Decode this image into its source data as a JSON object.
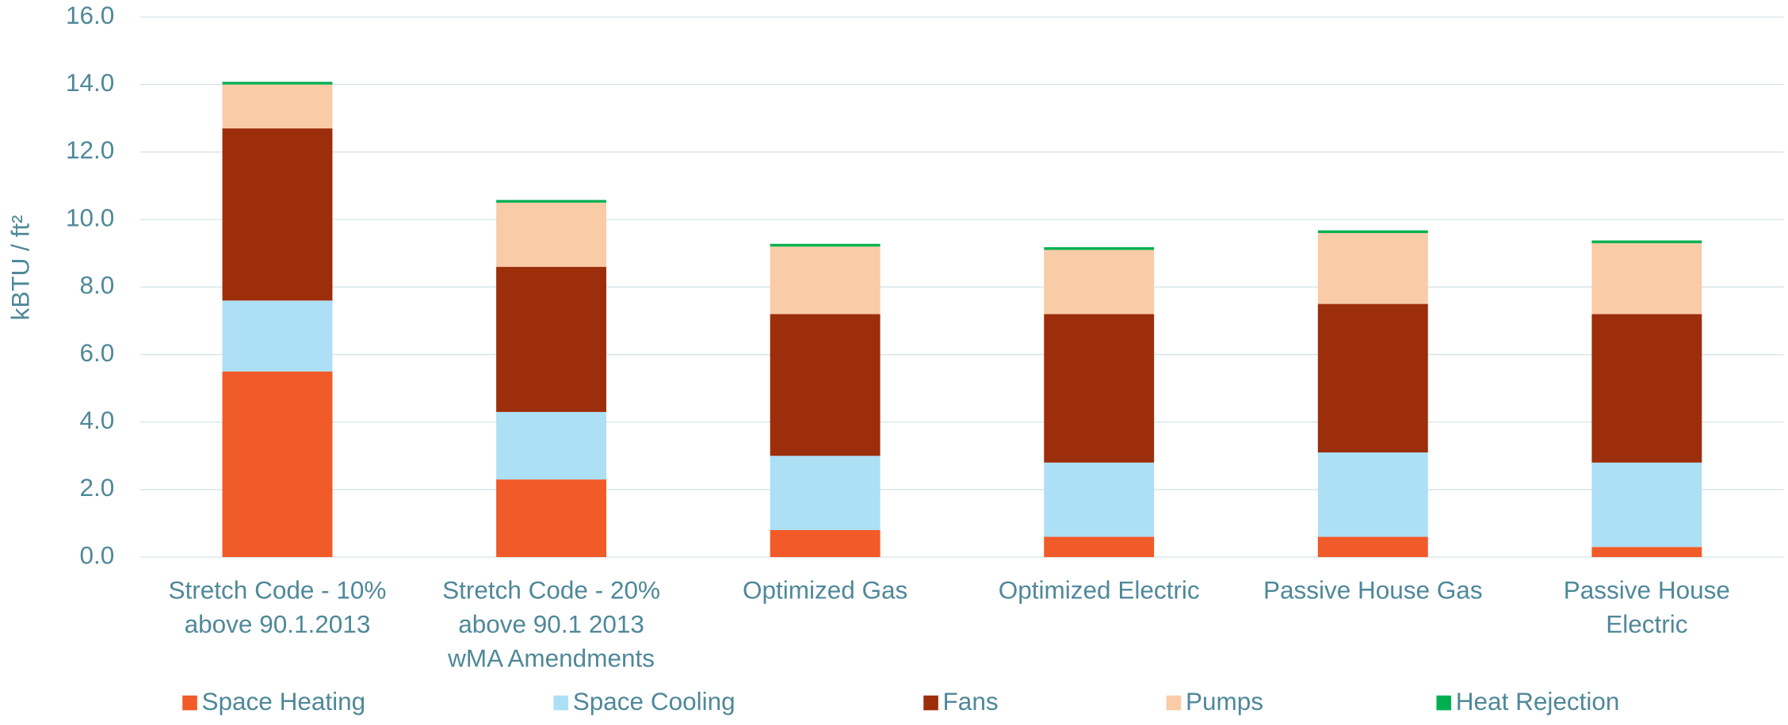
{
  "chart_data": {
    "type": "stacked_bar",
    "y_label": "kBTU / ft²",
    "categories": [
      [
        "Stretch Code - 10%",
        "above 90.1.2013"
      ],
      [
        "Stretch Code - 20%",
        "above 90.1 2013",
        "wMA Amendments"
      ],
      [
        "Optimized Gas"
      ],
      [
        "Optimized Electric"
      ],
      [
        "Passive House Gas"
      ],
      [
        "Passive House",
        "Electric"
      ]
    ],
    "series": [
      {
        "name": "Space Heating",
        "color": "#f15a29",
        "values": [
          5.5,
          2.3,
          0.8,
          0.6,
          0.6,
          0.3
        ]
      },
      {
        "name": "Space Cooling",
        "color": "#addff5",
        "values": [
          2.1,
          2.0,
          2.2,
          2.2,
          2.5,
          2.5
        ]
      },
      {
        "name": "Fans",
        "color": "#9c2e0b",
        "values": [
          5.1,
          4.3,
          4.2,
          4.4,
          4.4,
          4.4
        ]
      },
      {
        "name": "Pumps",
        "color": "#f9cba7",
        "values": [
          1.3,
          1.9,
          2.0,
          1.9,
          2.1,
          2.1
        ]
      },
      {
        "name": "Heat Rejection",
        "color": "#00b050",
        "values": [
          0.08,
          0.08,
          0.08,
          0.08,
          0.08,
          0.08
        ]
      }
    ],
    "ylim": [
      0,
      16
    ],
    "yticks": [
      {
        "value": 0,
        "label": "0.0"
      },
      {
        "value": 2,
        "label": "2.0"
      },
      {
        "value": 4,
        "label": "4.0"
      },
      {
        "value": 6,
        "label": "6.0"
      },
      {
        "value": 8,
        "label": "8.0"
      },
      {
        "value": 10,
        "label": "10.0"
      },
      {
        "value": 12,
        "label": "12.0"
      },
      {
        "value": 14,
        "label": "14.0"
      },
      {
        "value": 16,
        "label": "16.0"
      }
    ],
    "grid": true,
    "legend": "bottom"
  }
}
